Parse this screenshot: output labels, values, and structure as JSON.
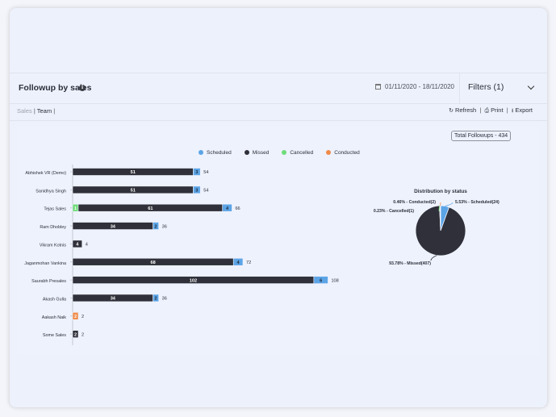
{
  "header": {
    "title": "Followup by sales",
    "info_icon": "info-icon",
    "date_range": "01/11/2020 - 18/11/2020",
    "filters_label": "Filters (1)"
  },
  "tabs": {
    "sales": "Sales",
    "separator": "|",
    "team": "Team",
    "trailing_separator": "|"
  },
  "actions": {
    "refresh": "Refresh",
    "print": "Print",
    "export": "Export",
    "separator": "|"
  },
  "total_badge": "Total Followups - 434",
  "legend": [
    {
      "label": "Scheduled",
      "color": "#5ba4e6"
    },
    {
      "label": "Missed",
      "color": "#2f3039"
    },
    {
      "label": "Cancelled",
      "color": "#6fdc7a"
    },
    {
      "label": "Conducted",
      "color": "#f08b4a"
    }
  ],
  "chart_data": [
    {
      "type": "bar",
      "orientation": "horizontal",
      "stacked": true,
      "categories": [
        "Abhishek VR (Demo)",
        "Sanidhya Singh",
        "Tejas Sales",
        "Ram Dhobley",
        "Vikram Kotnis",
        "Jaganmohan Vankina",
        "Saurabh Presales",
        "Akash Gulla",
        "Aakash Naik",
        "Some Sales"
      ],
      "series": [
        {
          "name": "Scheduled",
          "color": "#5ba4e6",
          "values": [
            3,
            3,
            4,
            2,
            0,
            4,
            6,
            2,
            0,
            0
          ],
          "labels": [
            "3",
            "3",
            "4",
            "2",
            "",
            "4",
            "6",
            "2",
            "",
            ""
          ]
        },
        {
          "name": "Missed",
          "color": "#2f3039",
          "values": [
            51,
            51,
            61,
            34,
            4,
            68,
            102,
            34,
            0,
            2
          ],
          "labels": [
            "51",
            "51",
            "61",
            "34",
            "4",
            "68",
            "102",
            "34",
            "",
            "2"
          ]
        },
        {
          "name": "Cancelled",
          "color": "#6fdc7a",
          "values": [
            0,
            0,
            1,
            0,
            0,
            0,
            0,
            0,
            0,
            0
          ],
          "labels": [
            "",
            "",
            "1",
            "",
            "",
            "",
            "",
            "",
            "",
            ""
          ]
        },
        {
          "name": "Conducted",
          "color": "#f08b4a",
          "values": [
            0,
            0,
            0,
            0,
            0,
            0,
            0,
            0,
            2,
            0
          ],
          "labels": [
            "",
            "",
            "",
            "",
            "",
            "",
            "",
            "",
            "2",
            ""
          ]
        }
      ],
      "totals": [
        54,
        54,
        66,
        36,
        4,
        72,
        108,
        36,
        2,
        2
      ],
      "xlim": [
        0,
        110
      ],
      "grid": false,
      "legend": "top"
    },
    {
      "type": "pie",
      "title": "Distribution by status",
      "slices": [
        {
          "name": "Scheduled",
          "value": 24,
          "percent": 5.53,
          "label": "5.53% - Scheduled(24)",
          "color": "#5ba4e6"
        },
        {
          "name": "Missed",
          "value": 407,
          "percent": 93.78,
          "label": "93.78% - Missed(407)",
          "color": "#2f3039"
        },
        {
          "name": "Cancelled",
          "value": 1,
          "percent": 0.23,
          "label": "0.23% - Cancelled(1)",
          "color": "#6fdc7a"
        },
        {
          "name": "Conducted",
          "value": 2,
          "percent": 0.46,
          "label": "0.46% - Conducted(2)",
          "color": "#f08b4a"
        }
      ]
    }
  ]
}
